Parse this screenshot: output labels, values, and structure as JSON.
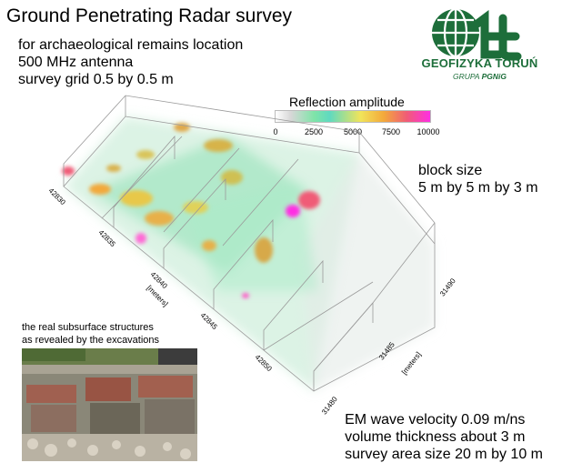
{
  "title": "Ground Penetrating Radar survey",
  "info_lines": [
    "for archaeological remains location",
    "500 MHz antenna",
    "survey grid 0.5 by 0.5 m"
  ],
  "logo": {
    "name": "GEOFIZYKA TORUŃ",
    "sub_prefix": "GRUPA ",
    "sub_brand": "PGNiG",
    "colors": {
      "primary": "#1d6e3a"
    }
  },
  "legend": {
    "title": "Reflection amplitude",
    "ticks": [
      "0",
      "2500",
      "5000",
      "7500",
      "10000"
    ],
    "colors": [
      "#ffffff",
      "#d7d7d7",
      "#7fe4a8",
      "#5fd9c0",
      "#f1e45a",
      "#f3a93b",
      "#f05c77",
      "#ff2ee3"
    ]
  },
  "block_size": [
    "block size",
    "5 m by 5 m by 3 m"
  ],
  "left_axis": {
    "ticks": [
      "42830",
      "42835",
      "42840",
      "42845",
      "42850"
    ],
    "unit": "[meters]"
  },
  "right_axis": {
    "ticks": [
      "31490",
      "31485",
      "31480"
    ],
    "unit": "[meters]"
  },
  "photo_caption": [
    "the real subsurface structures",
    "as revealed by the excavations"
  ],
  "survey_params": [
    "EM wave velocity 0.09 m/ns",
    "volume thickness about 3 m",
    "survey area size 20 m by 10 m"
  ]
}
